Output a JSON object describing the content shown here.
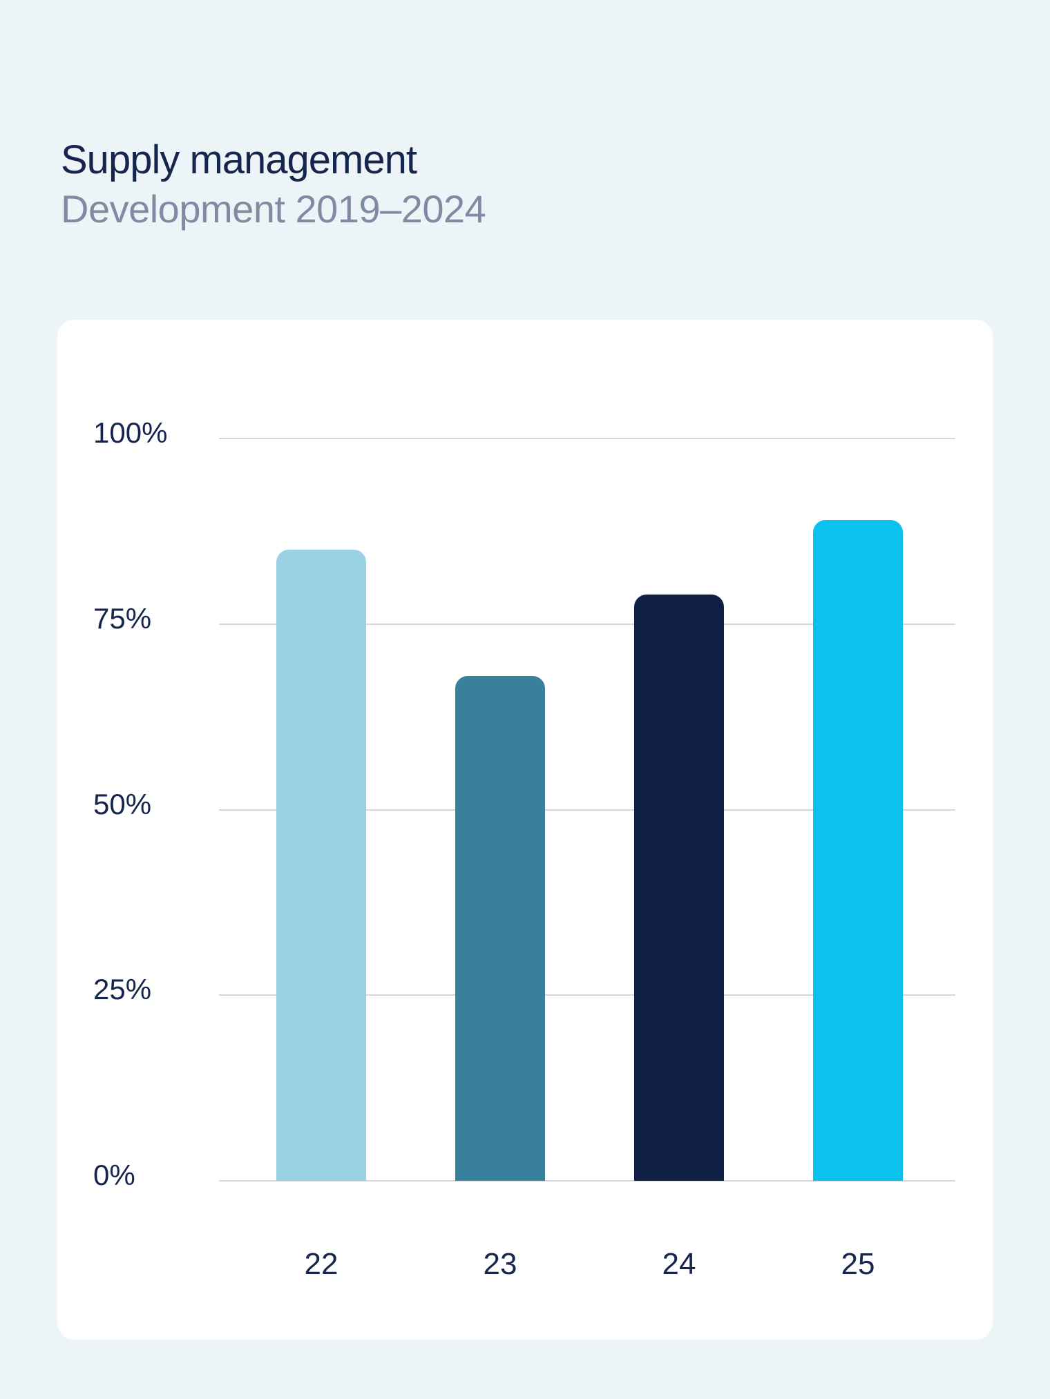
{
  "page": {
    "title": "Supply management",
    "subtitle": "Development 2019–2024"
  },
  "colors": {
    "background": "#EDF4F7",
    "card": "#FFFFFF",
    "title": "#16254C",
    "subtitle": "#7E8BA3",
    "gridline": "#D6D6DB",
    "axis_label": "#16254C"
  },
  "chart_data": {
    "type": "bar",
    "title": "Supply management",
    "subtitle": "Development 2019–2024",
    "categories": [
      "22",
      "23",
      "24",
      "25"
    ],
    "values": [
      85,
      68,
      79,
      89
    ],
    "unit": "%",
    "bar_colors": [
      "#9AD1E5",
      "#38809B",
      "#101F45",
      "#0BC2EF"
    ],
    "xlabel": "",
    "ylabel": "",
    "ylim": [
      0,
      100
    ],
    "yticks": [
      "100%",
      "75%",
      "50%",
      "25%",
      "0%"
    ],
    "ytick_values": [
      100,
      75,
      50,
      25,
      0
    ],
    "grid": true,
    "legend": false
  }
}
